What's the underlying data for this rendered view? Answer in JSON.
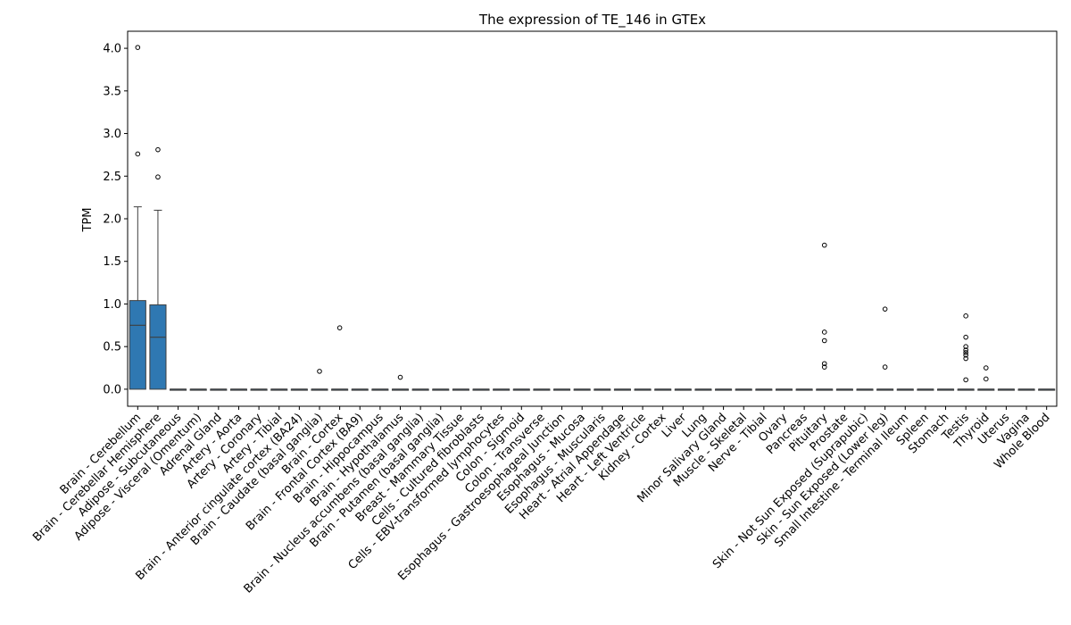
{
  "chart_data": {
    "type": "box",
    "title": "The expression of TE_146 in GTEx",
    "xlabel": "",
    "ylabel": "TPM",
    "ylim": [
      -0.2,
      4.2
    ],
    "yticks": [
      "0.0",
      "0.5",
      "1.0",
      "1.5",
      "2.0",
      "2.5",
      "3.0",
      "3.5",
      "4.0"
    ],
    "grid": false,
    "box_color": "#2f78b2",
    "series": [
      {
        "category": "Brain - Cerebellum",
        "min": 0.0,
        "q1": 0.0,
        "median": 0.75,
        "q3": 1.04,
        "max": 2.14,
        "outliers": [
          2.76,
          4.01
        ]
      },
      {
        "category": "Brain - Cerebellar Hemisphere",
        "min": 0.0,
        "q1": 0.0,
        "median": 0.61,
        "q3": 0.99,
        "max": 2.1,
        "outliers": [
          2.49,
          2.81
        ]
      },
      {
        "category": "Adipose - Subcutaneous",
        "min": 0,
        "q1": 0,
        "median": 0,
        "q3": 0,
        "max": 0,
        "outliers": []
      },
      {
        "category": "Adipose - Visceral (Omentum)",
        "min": 0,
        "q1": 0,
        "median": 0,
        "q3": 0,
        "max": 0,
        "outliers": []
      },
      {
        "category": "Adrenal Gland",
        "min": 0,
        "q1": 0,
        "median": 0,
        "q3": 0,
        "max": 0,
        "outliers": []
      },
      {
        "category": "Artery - Aorta",
        "min": 0,
        "q1": 0,
        "median": 0,
        "q3": 0,
        "max": 0,
        "outliers": []
      },
      {
        "category": "Artery - Coronary",
        "min": 0,
        "q1": 0,
        "median": 0,
        "q3": 0,
        "max": 0,
        "outliers": []
      },
      {
        "category": "Artery - Tibial",
        "min": 0,
        "q1": 0,
        "median": 0,
        "q3": 0,
        "max": 0,
        "outliers": []
      },
      {
        "category": "Brain - Anterior cingulate cortex (BA24)",
        "min": 0,
        "q1": 0,
        "median": 0,
        "q3": 0,
        "max": 0,
        "outliers": []
      },
      {
        "category": "Brain - Caudate (basal ganglia)",
        "min": 0,
        "q1": 0,
        "median": 0,
        "q3": 0,
        "max": 0,
        "outliers": [
          0.21
        ]
      },
      {
        "category": "Brain - Cortex",
        "min": 0,
        "q1": 0,
        "median": 0,
        "q3": 0,
        "max": 0,
        "outliers": [
          0.72
        ]
      },
      {
        "category": "Brain - Frontal Cortex (BA9)",
        "min": 0,
        "q1": 0,
        "median": 0,
        "q3": 0,
        "max": 0,
        "outliers": []
      },
      {
        "category": "Brain - Hippocampus",
        "min": 0,
        "q1": 0,
        "median": 0,
        "q3": 0,
        "max": 0,
        "outliers": []
      },
      {
        "category": "Brain - Hypothalamus",
        "min": 0,
        "q1": 0,
        "median": 0,
        "q3": 0,
        "max": 0,
        "outliers": [
          0.14
        ]
      },
      {
        "category": "Brain - Nucleus accumbens (basal ganglia)",
        "min": 0,
        "q1": 0,
        "median": 0,
        "q3": 0,
        "max": 0,
        "outliers": []
      },
      {
        "category": "Brain - Putamen (basal ganglia)",
        "min": 0,
        "q1": 0,
        "median": 0,
        "q3": 0,
        "max": 0,
        "outliers": []
      },
      {
        "category": "Breast - Mammary Tissue",
        "min": 0,
        "q1": 0,
        "median": 0,
        "q3": 0,
        "max": 0,
        "outliers": []
      },
      {
        "category": "Cells - Cultured fibroblasts",
        "min": 0,
        "q1": 0,
        "median": 0,
        "q3": 0,
        "max": 0,
        "outliers": []
      },
      {
        "category": "Cells - EBV-transformed lymphocytes",
        "min": 0,
        "q1": 0,
        "median": 0,
        "q3": 0,
        "max": 0,
        "outliers": []
      },
      {
        "category": "Colon - Sigmoid",
        "min": 0,
        "q1": 0,
        "median": 0,
        "q3": 0,
        "max": 0,
        "outliers": []
      },
      {
        "category": "Colon - Transverse",
        "min": 0,
        "q1": 0,
        "median": 0,
        "q3": 0,
        "max": 0,
        "outliers": []
      },
      {
        "category": "Esophagus - Gastroesophageal Junction",
        "min": 0,
        "q1": 0,
        "median": 0,
        "q3": 0,
        "max": 0,
        "outliers": []
      },
      {
        "category": "Esophagus - Mucosa",
        "min": 0,
        "q1": 0,
        "median": 0,
        "q3": 0,
        "max": 0,
        "outliers": []
      },
      {
        "category": "Esophagus - Muscularis",
        "min": 0,
        "q1": 0,
        "median": 0,
        "q3": 0,
        "max": 0,
        "outliers": []
      },
      {
        "category": "Heart - Atrial Appendage",
        "min": 0,
        "q1": 0,
        "median": 0,
        "q3": 0,
        "max": 0,
        "outliers": []
      },
      {
        "category": "Heart - Left Ventricle",
        "min": 0,
        "q1": 0,
        "median": 0,
        "q3": 0,
        "max": 0,
        "outliers": []
      },
      {
        "category": "Kidney - Cortex",
        "min": 0,
        "q1": 0,
        "median": 0,
        "q3": 0,
        "max": 0,
        "outliers": []
      },
      {
        "category": "Liver",
        "min": 0,
        "q1": 0,
        "median": 0,
        "q3": 0,
        "max": 0,
        "outliers": []
      },
      {
        "category": "Lung",
        "min": 0,
        "q1": 0,
        "median": 0,
        "q3": 0,
        "max": 0,
        "outliers": []
      },
      {
        "category": "Minor Salivary Gland",
        "min": 0,
        "q1": 0,
        "median": 0,
        "q3": 0,
        "max": 0,
        "outliers": []
      },
      {
        "category": "Muscle - Skeletal",
        "min": 0,
        "q1": 0,
        "median": 0,
        "q3": 0,
        "max": 0,
        "outliers": []
      },
      {
        "category": "Nerve - Tibial",
        "min": 0,
        "q1": 0,
        "median": 0,
        "q3": 0,
        "max": 0,
        "outliers": []
      },
      {
        "category": "Ovary",
        "min": 0,
        "q1": 0,
        "median": 0,
        "q3": 0,
        "max": 0,
        "outliers": []
      },
      {
        "category": "Pancreas",
        "min": 0,
        "q1": 0,
        "median": 0,
        "q3": 0,
        "max": 0,
        "outliers": []
      },
      {
        "category": "Pituitary",
        "min": 0,
        "q1": 0,
        "median": 0,
        "q3": 0,
        "max": 0,
        "outliers": [
          0.26,
          0.3,
          0.57,
          0.67,
          1.69
        ]
      },
      {
        "category": "Prostate",
        "min": 0,
        "q1": 0,
        "median": 0,
        "q3": 0,
        "max": 0,
        "outliers": []
      },
      {
        "category": "Skin - Not Sun Exposed (Suprapubic)",
        "min": 0,
        "q1": 0,
        "median": 0,
        "q3": 0,
        "max": 0,
        "outliers": []
      },
      {
        "category": "Skin - Sun Exposed (Lower leg)",
        "min": 0,
        "q1": 0,
        "median": 0,
        "q3": 0,
        "max": 0,
        "outliers": [
          0.26,
          0.94
        ]
      },
      {
        "category": "Small Intestine - Terminal Ileum",
        "min": 0,
        "q1": 0,
        "median": 0,
        "q3": 0,
        "max": 0,
        "outliers": []
      },
      {
        "category": "Spleen",
        "min": 0,
        "q1": 0,
        "median": 0,
        "q3": 0,
        "max": 0,
        "outliers": []
      },
      {
        "category": "Stomach",
        "min": 0,
        "q1": 0,
        "median": 0,
        "q3": 0,
        "max": 0,
        "outliers": []
      },
      {
        "category": "Testis",
        "min": 0,
        "q1": 0,
        "median": 0,
        "q3": 0,
        "max": 0,
        "outliers": [
          0.11,
          0.36,
          0.4,
          0.43,
          0.46,
          0.5,
          0.61,
          0.86
        ]
      },
      {
        "category": "Thyroid",
        "min": 0,
        "q1": 0,
        "median": 0,
        "q3": 0,
        "max": 0,
        "outliers": [
          0.12,
          0.25
        ]
      },
      {
        "category": "Uterus",
        "min": 0,
        "q1": 0,
        "median": 0,
        "q3": 0,
        "max": 0,
        "outliers": []
      },
      {
        "category": "Vagina",
        "min": 0,
        "q1": 0,
        "median": 0,
        "q3": 0,
        "max": 0,
        "outliers": []
      },
      {
        "category": "Whole Blood",
        "min": 0,
        "q1": 0,
        "median": 0,
        "q3": 0,
        "max": 0,
        "outliers": []
      }
    ]
  }
}
